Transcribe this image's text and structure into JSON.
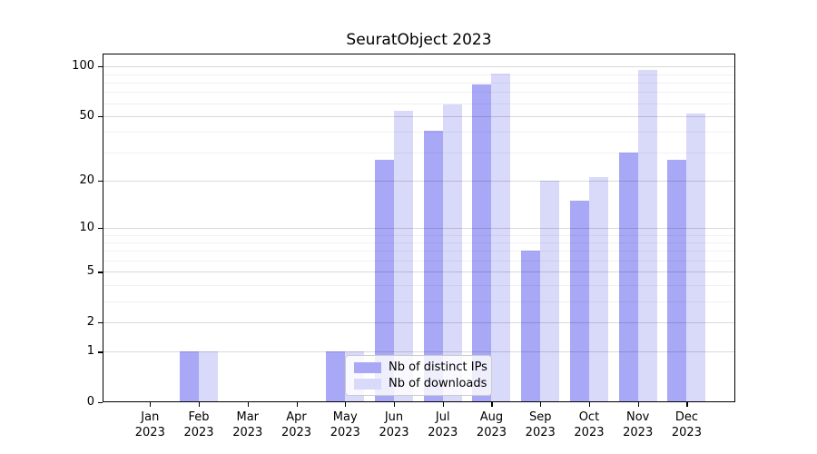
{
  "title": "SeuratObject 2023",
  "chart_data": {
    "type": "bar",
    "title": "SeuratObject 2023",
    "categories": [
      "Jan 2023",
      "Feb 2023",
      "Mar 2023",
      "Apr 2023",
      "May 2023",
      "Jun 2023",
      "Jul 2023",
      "Aug 2023",
      "Sep 2023",
      "Oct 2023",
      "Nov 2023",
      "Dec 2023"
    ],
    "series": [
      {
        "name": "Nb of distinct IPs",
        "color": "#a8a8f6",
        "values": [
          0,
          1,
          0,
          0,
          1,
          27,
          41,
          78,
          7,
          15,
          30,
          27
        ]
      },
      {
        "name": "Nb of downloads",
        "color": "#d9d9fa",
        "values": [
          0,
          1,
          0,
          0,
          1,
          54,
          59,
          91,
          20,
          21,
          95,
          52
        ]
      }
    ],
    "xlabel": "",
    "ylabel": "",
    "yscale": "log1p",
    "ylim": [
      0,
      119
    ],
    "y_major_ticks": [
      0,
      1,
      2,
      5,
      10,
      20,
      50,
      100
    ],
    "y_minor_gridlines": [
      3,
      4,
      6,
      7,
      8,
      9,
      30,
      40,
      60,
      70,
      80,
      90
    ],
    "grid": "on",
    "legend_position": "lower center",
    "legend_entries": [
      "Nb of distinct IPs",
      "Nb of downloads"
    ]
  },
  "colors": {
    "distinct_ips_bar": "#a8a8f6",
    "downloads_bar": "#d9d9fa",
    "spine": "#000000",
    "legend_border": "#cccccc",
    "background": "#ffffff"
  }
}
